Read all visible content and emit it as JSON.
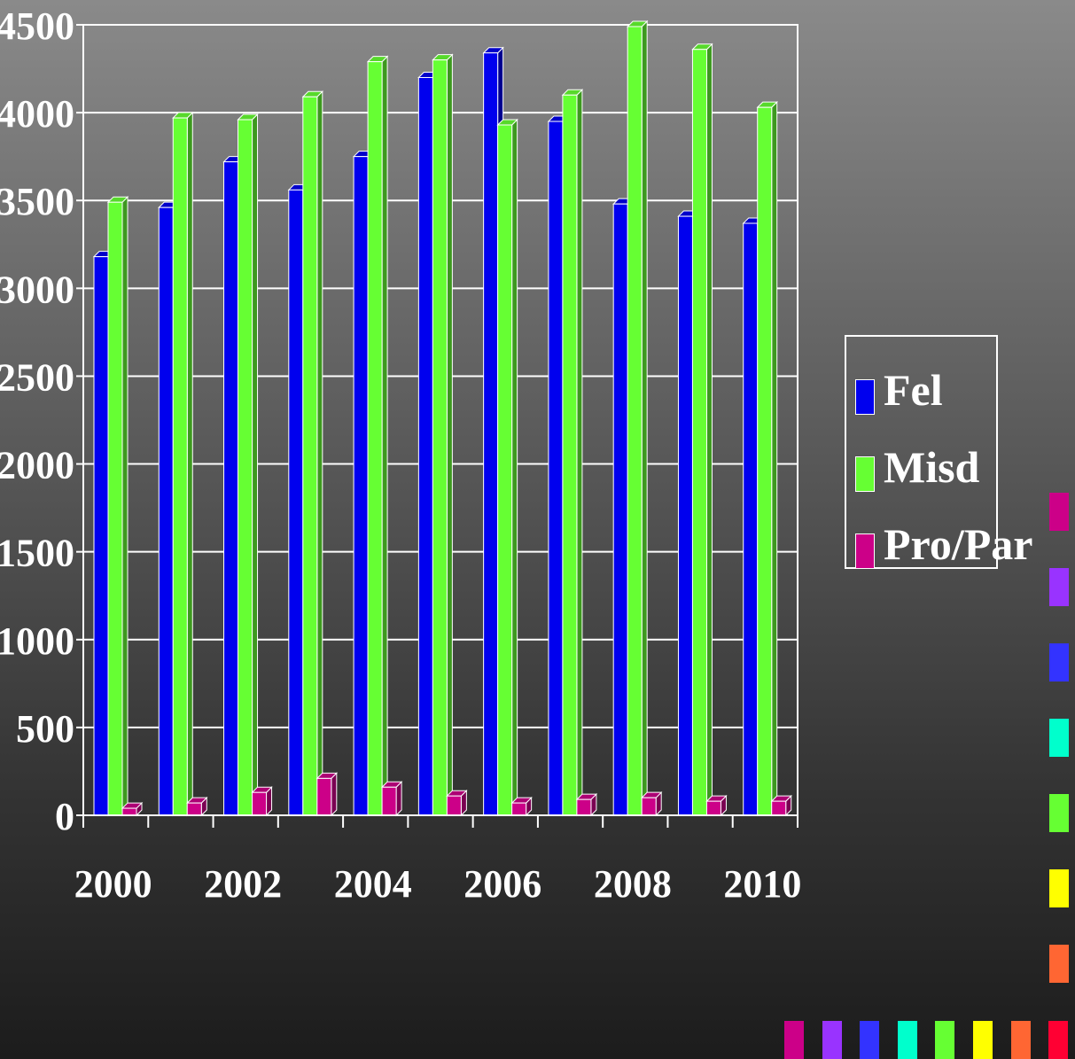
{
  "chart_data": {
    "type": "bar",
    "categories": [
      "2000",
      "2001",
      "2002",
      "2003",
      "2004",
      "2005",
      "2006",
      "2007",
      "2008",
      "2009",
      "2010"
    ],
    "x_tick_labels": [
      "2000",
      "2002",
      "2004",
      "2006",
      "2008",
      "2010"
    ],
    "series": [
      {
        "name": "Fel",
        "color": "#0000ee",
        "values": [
          3180,
          3460,
          3720,
          3560,
          3750,
          4200,
          4340,
          3950,
          3480,
          3410,
          3370
        ]
      },
      {
        "name": "Misd",
        "color": "#66ff33",
        "values": [
          3490,
          3970,
          3960,
          4090,
          4290,
          4300,
          3930,
          4100,
          4490,
          4360,
          4030
        ]
      },
      {
        "name": "Pro/Par",
        "color": "#cc0088",
        "values": [
          40,
          70,
          130,
          210,
          160,
          110,
          70,
          90,
          100,
          80,
          80
        ]
      }
    ],
    "yticks": [
      "0",
      "500",
      "1000",
      "1500",
      "2000",
      "2500",
      "3000",
      "3500",
      "4000",
      "4500"
    ],
    "ylim": [
      0,
      4500
    ],
    "grid": true,
    "legend_position": "right"
  },
  "decor": {
    "side_squares": [
      "#cc0088",
      "#9933ff",
      "#3333ff",
      "#00ffcc",
      "#66ff33",
      "#ffff00",
      "#ff6633"
    ],
    "bottom_squares": [
      "#cc0088",
      "#9933ff",
      "#3333ff",
      "#00ffcc",
      "#66ff33",
      "#ffff00",
      "#ff6633",
      "#ff0033"
    ]
  }
}
